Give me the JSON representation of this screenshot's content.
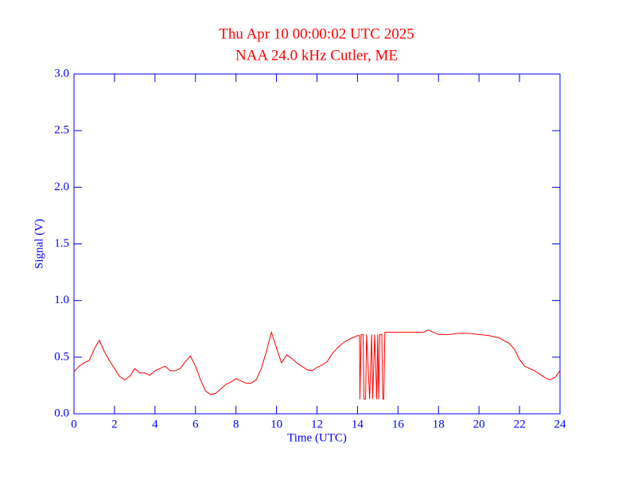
{
  "chart_data": {
    "type": "line",
    "title": "Thu Apr 10 00:00:02 UTC 2025",
    "subtitle": "NAA 24.0 kHz Cutler, ME",
    "xlabel": "Time (UTC)",
    "ylabel": "Signal (V)",
    "color": "#ff0000",
    "axis_color": "#0000ff",
    "xlim": [
      0,
      24
    ],
    "xticks": [
      0,
      2,
      4,
      6,
      8,
      10,
      12,
      14,
      16,
      18,
      20,
      22,
      24
    ],
    "ylim": [
      0,
      3
    ],
    "yticks": [
      {
        "value": 0,
        "label": "0.0"
      },
      0.5,
      {
        "value": 1,
        "label": "1.0"
      },
      1.5,
      {
        "value": 2,
        "label": "2.0"
      },
      2.5,
      {
        "value": 3,
        "label": "3.0"
      }
    ],
    "x": [
      0,
      0.25,
      0.5,
      0.75,
      1,
      1.25,
      1.5,
      1.75,
      2,
      2.25,
      2.5,
      2.75,
      3,
      3.25,
      3.5,
      3.75,
      4,
      4.25,
      4.5,
      4.75,
      5,
      5.25,
      5.5,
      5.75,
      6,
      6.25,
      6.5,
      6.75,
      7,
      7.25,
      7.5,
      7.75,
      8,
      8.25,
      8.5,
      8.75,
      9,
      9.25,
      9.5,
      9.75,
      10,
      10.25,
      10.5,
      10.75,
      11,
      11.25,
      11.5,
      11.75,
      12,
      12.25,
      12.5,
      12.75,
      13,
      13.25,
      13.5,
      13.75,
      14,
      14.1,
      14.12,
      14.18,
      14.28,
      14.32,
      14.4,
      14.45,
      14.6,
      14.7,
      14.75,
      14.85,
      14.95,
      15,
      15.05,
      15.1,
      15.2,
      15.25,
      15.3,
      15.35,
      15.5,
      16,
      16.5,
      17,
      17.25,
      17.5,
      17.75,
      18,
      18.5,
      19,
      19.5,
      20,
      20.5,
      21,
      21.5,
      21.75,
      22,
      22.25,
      22.5,
      22.75,
      23,
      23.25,
      23.5,
      23.75,
      24
    ],
    "values": [
      0.37,
      0.42,
      0.45,
      0.47,
      0.57,
      0.65,
      0.55,
      0.47,
      0.4,
      0.33,
      0.3,
      0.33,
      0.4,
      0.36,
      0.36,
      0.34,
      0.38,
      0.4,
      0.42,
      0.38,
      0.38,
      0.4,
      0.46,
      0.51,
      0.42,
      0.3,
      0.2,
      0.17,
      0.18,
      0.22,
      0.26,
      0.28,
      0.31,
      0.29,
      0.27,
      0.27,
      0.3,
      0.4,
      0.55,
      0.72,
      0.58,
      0.45,
      0.52,
      0.49,
      0.45,
      0.42,
      0.39,
      0.38,
      0.41,
      0.43,
      0.46,
      0.53,
      0.58,
      0.62,
      0.65,
      0.67,
      0.69,
      0.69,
      0.13,
      0.7,
      0.7,
      0.13,
      0.13,
      0.7,
      0.13,
      0.7,
      0.13,
      0.7,
      0.13,
      0.7,
      0.13,
      0.7,
      0.7,
      0.13,
      0.13,
      0.72,
      0.72,
      0.72,
      0.72,
      0.72,
      0.72,
      0.74,
      0.72,
      0.7,
      0.7,
      0.71,
      0.71,
      0.7,
      0.69,
      0.67,
      0.62,
      0.57,
      0.48,
      0.42,
      0.4,
      0.38,
      0.35,
      0.32,
      0.3,
      0.32,
      0.38
    ]
  }
}
